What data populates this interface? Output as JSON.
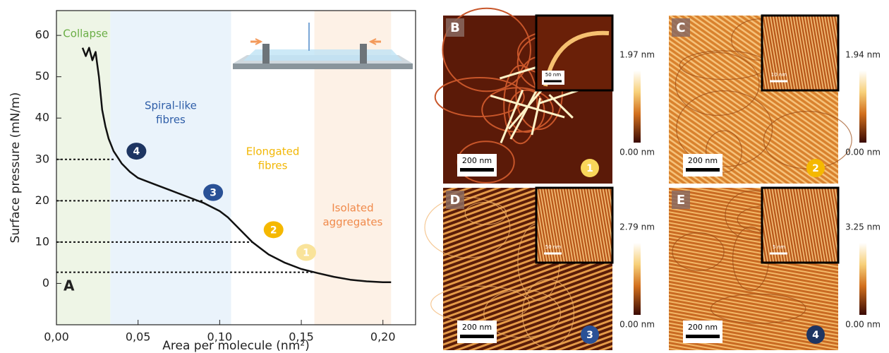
{
  "chart_data": {
    "type": "line",
    "panel_label": "A",
    "x_label": "Area per molecule (nm²)",
    "y_label": "Surface pressure (mN/m)",
    "x": [
      0.016,
      0.018,
      0.02,
      0.022,
      0.024,
      0.025,
      0.026,
      0.027,
      0.028,
      0.03,
      0.032,
      0.035,
      0.04,
      0.045,
      0.05,
      0.06,
      0.07,
      0.08,
      0.09,
      0.1,
      0.105,
      0.11,
      0.115,
      0.12,
      0.125,
      0.13,
      0.14,
      0.15,
      0.16,
      0.17,
      0.18,
      0.19,
      0.2,
      0.205
    ],
    "values": [
      57,
      55,
      57,
      54,
      56,
      53,
      50,
      46,
      42,
      38,
      35,
      32,
      29,
      27,
      25.5,
      24,
      22.5,
      21,
      19.5,
      17.5,
      16,
      14,
      12,
      10,
      8.5,
      7,
      5,
      3.5,
      2.5,
      1.6,
      0.9,
      0.5,
      0.3,
      0.3
    ],
    "color": "#111111",
    "xlim": [
      0,
      0.22
    ],
    "ylim": [
      -10,
      66
    ],
    "xticks": [
      {
        "value": 0,
        "label": "0,00"
      },
      {
        "value": 0.05,
        "label": "0,05"
      },
      {
        "value": 0.1,
        "label": "0,10"
      },
      {
        "value": 0.15,
        "label": "0,15"
      },
      {
        "value": 0.2,
        "label": "0,20"
      }
    ],
    "yticks": [
      0,
      10,
      20,
      30,
      40,
      50,
      60
    ],
    "regions": [
      {
        "label": [
          "Collapse"
        ],
        "x": [
          0,
          0.033
        ],
        "color": "#eef5e6",
        "label_color": "#6aae45"
      },
      {
        "label": [
          "Spiral-like",
          "fibres"
        ],
        "x": [
          0.033,
          0.107
        ],
        "color": "#eaf3fb",
        "label_color": "#2f5ea8"
      },
      {
        "label": [
          "Elongated",
          "fibres"
        ],
        "x": [
          0.107,
          0.158
        ],
        "color": "#ffffff",
        "label_color": "#f2b705"
      },
      {
        "label": [
          "Isolated",
          "aggregates"
        ],
        "x": [
          0.158,
          0.205
        ],
        "color": "#fdf1e6",
        "label_color": "#f08a4b"
      }
    ],
    "reference_lines": [
      {
        "y": 30,
        "x_end": 0.036
      },
      {
        "y": 20,
        "x_end": 0.09
      },
      {
        "y": 10,
        "x_end": 0.12
      },
      {
        "y": 2.7,
        "x_end": 0.158
      }
    ],
    "markers": [
      {
        "label": "4",
        "x": 0.049,
        "y": 32,
        "color": "#1e3562",
        "text_color": "#ffffff"
      },
      {
        "label": "3",
        "x": 0.096,
        "y": 22,
        "color": "#2a5196",
        "text_color": "#ffffff"
      },
      {
        "label": "2",
        "x": 0.133,
        "y": 13,
        "color": "#f5b800",
        "text_color": "#ffffff"
      },
      {
        "label": "1",
        "x": 0.153,
        "y": 7.5,
        "color": "#f9e39a",
        "text_color": "#ffffff"
      }
    ]
  },
  "afm_panels": [
    {
      "letter": "B",
      "scale_bar": "200 nm",
      "inset_scale": "50 nm",
      "cmax": "1.97 nm",
      "cmin": "0.00 nm",
      "marker": "1",
      "marker_color": "#f9d65a"
    },
    {
      "letter": "C",
      "scale_bar": "200 nm",
      "inset_scale": "10 nm",
      "cmax": "1.94 nm",
      "cmin": "0.00 nm",
      "marker": "2",
      "marker_color": "#f5b800"
    },
    {
      "letter": "D",
      "scale_bar": "200 nm",
      "inset_scale": "50 nm",
      "cmax": "2.79 nm",
      "cmin": "0.00 nm",
      "marker": "3",
      "marker_color": "#2a5196"
    },
    {
      "letter": "E",
      "scale_bar": "200 nm",
      "inset_scale": "5 nm",
      "cmax": "3.25 nm",
      "cmin": "0.00 nm",
      "marker": "4",
      "marker_color": "#1e3562"
    }
  ]
}
